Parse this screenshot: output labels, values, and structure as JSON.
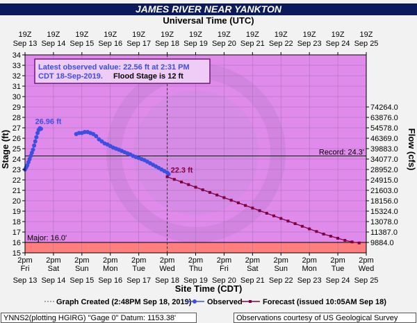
{
  "chart_data": {
    "type": "line",
    "title": "JAMES RIVER NEAR YANKTON",
    "top_axis_title": "Universal Time (UTC)",
    "top_ticks": [
      [
        "19Z",
        "Sep 13"
      ],
      [
        "19Z",
        "Sep 14"
      ],
      [
        "19Z",
        "Sep 15"
      ],
      [
        "19Z",
        "Sep 16"
      ],
      [
        "19Z",
        "Sep 17"
      ],
      [
        "19Z",
        "Sep 18"
      ],
      [
        "19Z",
        "Sep 19"
      ],
      [
        "19Z",
        "Sep 20"
      ],
      [
        "19Z",
        "Sep 21"
      ],
      [
        "19Z",
        "Sep 22"
      ],
      [
        "19Z",
        "Sep 23"
      ],
      [
        "19Z",
        "Sep 24"
      ],
      [
        "19Z",
        "Sep 25"
      ]
    ],
    "bottom_ticks": [
      [
        "2pm",
        "Fri"
      ],
      [
        "2pm",
        "Sat"
      ],
      [
        "2pm",
        "Sun"
      ],
      [
        "2pm",
        "Mon"
      ],
      [
        "2pm",
        "Tue"
      ],
      [
        "2pm",
        "Wed"
      ],
      [
        "2pm",
        "Thu"
      ],
      [
        "2pm",
        "Fri"
      ],
      [
        "2pm",
        "Sat"
      ],
      [
        "2pm",
        "Sun"
      ],
      [
        "2pm",
        "Mon"
      ],
      [
        "2pm",
        "Tue"
      ],
      [
        "2pm",
        "Wed"
      ]
    ],
    "bottom_dates": [
      "Sep 13",
      "Sep 14",
      "Sep 15",
      "Sep 16",
      "Sep 17",
      "Sep 18",
      "Sep 19",
      "Sep 20",
      "Sep 21",
      "Sep 22",
      "Sep 23",
      "Sep 24",
      "Sep 25"
    ],
    "xlabel": "Site Time (CDT)",
    "ylabel": "Stage (ft)",
    "y2label": "Flow (cfs)",
    "ylim": [
      15,
      34
    ],
    "xlim": [
      0,
      12
    ],
    "y_ticks": [
      15,
      16,
      17,
      18,
      19,
      20,
      21,
      22,
      23,
      24,
      25,
      26,
      27,
      28,
      29,
      30,
      31,
      32,
      33,
      34
    ],
    "flow_ticks": [
      {
        "stage": 16,
        "label": "9884.0"
      },
      {
        "stage": 17,
        "label": "11387.0"
      },
      {
        "stage": 18,
        "label": "13078.0"
      },
      {
        "stage": 19,
        "label": "15324.0"
      },
      {
        "stage": 20,
        "label": "18156.0"
      },
      {
        "stage": 21,
        "label": "21603.0"
      },
      {
        "stage": 22,
        "label": "24915.0"
      },
      {
        "stage": 23,
        "label": "28952.0"
      },
      {
        "stage": 24,
        "label": "34077.0"
      },
      {
        "stage": 25,
        "label": "39883.0"
      },
      {
        "stage": 26,
        "label": "46369.0"
      },
      {
        "stage": 27,
        "label": "54578.0"
      },
      {
        "stage": 28,
        "label": "63876.0"
      },
      {
        "stage": 29,
        "label": "74264.0"
      }
    ],
    "bands": [
      {
        "name": "major",
        "from": 15,
        "to": 16,
        "color": "#ff7f7f"
      },
      {
        "name": "above_major",
        "from": 16,
        "to": 34,
        "color": "#e08aec"
      }
    ],
    "thresholds": [
      {
        "label": "Record: 24.3'",
        "value": 24.3,
        "side": "right"
      },
      {
        "label": "Major: 16.0'",
        "value": 16.0,
        "side": "left"
      }
    ],
    "graph_created_x": 5,
    "series": [
      {
        "name": "Observed",
        "color": "#3b4fe0",
        "points": [
          [
            0.0,
            23.0
          ],
          [
            0.04,
            23.2
          ],
          [
            0.08,
            23.4
          ],
          [
            0.12,
            23.7
          ],
          [
            0.16,
            24.0
          ],
          [
            0.2,
            24.3
          ],
          [
            0.24,
            24.6
          ],
          [
            0.28,
            24.9
          ],
          [
            0.32,
            25.3
          ],
          [
            0.36,
            25.7
          ],
          [
            0.4,
            26.1
          ],
          [
            0.44,
            26.5
          ],
          [
            0.48,
            26.8
          ],
          [
            0.52,
            26.96
          ],
          [
            0.56,
            26.9
          ],
          [
            1.8,
            26.4
          ],
          [
            1.9,
            26.5
          ],
          [
            2.0,
            26.5
          ],
          [
            2.1,
            26.6
          ],
          [
            2.2,
            26.6
          ],
          [
            2.3,
            26.5
          ],
          [
            2.4,
            26.4
          ],
          [
            2.5,
            26.2
          ],
          [
            2.6,
            25.9
          ],
          [
            2.7,
            25.7
          ],
          [
            2.8,
            25.5
          ],
          [
            2.9,
            25.4
          ],
          [
            3.0,
            25.25
          ],
          [
            3.1,
            25.1
          ],
          [
            3.2,
            25.0
          ],
          [
            3.3,
            24.9
          ],
          [
            3.4,
            24.78
          ],
          [
            3.5,
            24.66
          ],
          [
            3.6,
            24.55
          ],
          [
            3.7,
            24.45
          ],
          [
            3.8,
            24.3
          ],
          [
            3.9,
            24.2
          ],
          [
            4.0,
            24.1
          ],
          [
            4.1,
            24.0
          ],
          [
            4.2,
            23.9
          ],
          [
            4.3,
            23.75
          ],
          [
            4.4,
            23.6
          ],
          [
            4.5,
            23.45
          ],
          [
            4.6,
            23.3
          ],
          [
            4.7,
            23.15
          ],
          [
            4.8,
            23.0
          ],
          [
            4.9,
            22.85
          ],
          [
            5.0,
            22.7
          ],
          [
            5.05,
            22.56
          ]
        ]
      },
      {
        "name": "Forecast",
        "color": "#800040",
        "points": [
          [
            5.0,
            22.3
          ],
          [
            5.25,
            22.05
          ],
          [
            5.5,
            21.8
          ],
          [
            5.75,
            21.55
          ],
          [
            6.0,
            21.3
          ],
          [
            6.25,
            21.05
          ],
          [
            6.5,
            20.8
          ],
          [
            6.75,
            20.55
          ],
          [
            7.0,
            20.3
          ],
          [
            7.25,
            20.05
          ],
          [
            7.5,
            19.8
          ],
          [
            7.75,
            19.55
          ],
          [
            8.0,
            19.3
          ],
          [
            8.25,
            19.05
          ],
          [
            8.5,
            18.8
          ],
          [
            8.75,
            18.55
          ],
          [
            9.0,
            18.3
          ],
          [
            9.25,
            18.05
          ],
          [
            9.5,
            17.8
          ],
          [
            9.75,
            17.55
          ],
          [
            10.0,
            17.3
          ],
          [
            10.25,
            17.05
          ],
          [
            10.5,
            16.8
          ],
          [
            10.75,
            16.6
          ],
          [
            11.0,
            16.4
          ],
          [
            11.25,
            16.2
          ],
          [
            11.5,
            16.05
          ],
          [
            11.75,
            15.95
          ]
        ]
      }
    ],
    "annotations": [
      {
        "text": "26.96 ft",
        "x": 0.55,
        "y": 26.96,
        "color": "#3b4fe0"
      },
      {
        "text": "22.3 ft",
        "x": 5.05,
        "y": 22.3,
        "color": "#800040"
      }
    ],
    "info_box": {
      "line1": "Latest observed value: 22.56 ft at 2:31 PM",
      "line2a": "CDT 18-Sep-2019.",
      "line2b": "Flood Stage is 12 ft"
    },
    "legend": {
      "created": "Graph Created (2:48PM Sep 18, 2019)",
      "observed": "Observed",
      "forecast": "Forecast (issued 10:05AM Sep 18)"
    },
    "colors": {
      "title_bar": "#0a1a5c",
      "plot_bg": "#e08aec",
      "major_band": "#ff7f7f",
      "observed": "#3b4fe0",
      "forecast": "#800040"
    }
  },
  "footer": {
    "left": "YNNS2(plotting HGIRG) \"Gage 0\" Datum: 1153.38'",
    "right": "Observations courtesy of US Geological Survey"
  }
}
